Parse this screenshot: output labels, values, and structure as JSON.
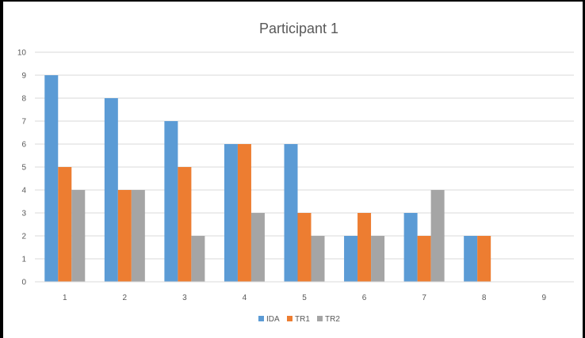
{
  "chart_data": {
    "type": "bar",
    "title": "Participant 1",
    "xlabel": "",
    "ylabel": "",
    "categories": [
      "1",
      "2",
      "3",
      "4",
      "5",
      "6",
      "7",
      "8",
      "9"
    ],
    "series": [
      {
        "name": "IDA",
        "color": "#5b9bd5",
        "values": [
          9,
          8,
          7,
          6,
          6,
          2,
          3,
          2,
          0
        ]
      },
      {
        "name": "TR1",
        "color": "#ed7d31",
        "values": [
          5,
          4,
          5,
          6,
          3,
          3,
          2,
          2,
          0
        ]
      },
      {
        "name": "TR2",
        "color": "#a5a5a5",
        "values": [
          4,
          4,
          2,
          3,
          2,
          2,
          4,
          0,
          0
        ]
      }
    ],
    "ylim": [
      0,
      10
    ],
    "yticks": [
      "0",
      "1",
      "2",
      "3",
      "4",
      "5",
      "6",
      "7",
      "8",
      "9",
      "10"
    ],
    "grid": true,
    "legend_position": "bottom"
  }
}
